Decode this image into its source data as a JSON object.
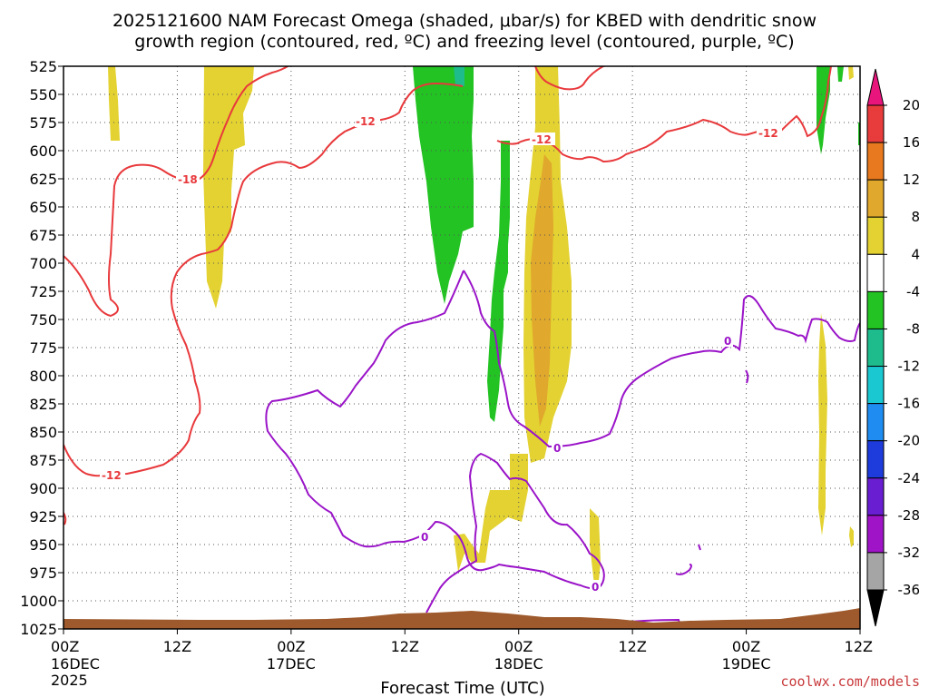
{
  "chart_data": {
    "type": "heatmap",
    "title_line1": "2025121600 NAM Forecast Omega (shaded, μbar/s) for KBED with dendritic snow",
    "title_line2": "growth region (contoured, red, ºC) and freezing level (contoured, purple, ºC)",
    "xlabel": "Forecast Time (UTC)",
    "credit": "coolwx.com/models",
    "y_levels": [
      "525",
      "550",
      "575",
      "600",
      "625",
      "650",
      "675",
      "700",
      "725",
      "750",
      "775",
      "800",
      "825",
      "850",
      "875",
      "900",
      "925",
      "950",
      "975",
      "1000",
      "1025"
    ],
    "y_range_hpa": [
      525,
      1025
    ],
    "x_range_hours": [
      0,
      84
    ],
    "x_ticks": [
      {
        "hour": 0,
        "time": "00Z",
        "date": "16DEC",
        "year": "2025"
      },
      {
        "hour": 12,
        "time": "12Z",
        "date": "",
        "year": ""
      },
      {
        "hour": 24,
        "time": "00Z",
        "date": "17DEC",
        "year": ""
      },
      {
        "hour": 36,
        "time": "12Z",
        "date": "",
        "year": ""
      },
      {
        "hour": 48,
        "time": "00Z",
        "date": "18DEC",
        "year": ""
      },
      {
        "hour": 60,
        "time": "12Z",
        "date": "",
        "year": ""
      },
      {
        "hour": 72,
        "time": "00Z",
        "date": "19DEC",
        "year": ""
      },
      {
        "hour": 84,
        "time": "12Z",
        "date": "",
        "year": ""
      }
    ],
    "colorbar": {
      "labels": [
        "20",
        "16",
        "12",
        "8",
        "4",
        "-4",
        "-8",
        "-12",
        "-16",
        "-20",
        "-24",
        "-28",
        "-32",
        "-36"
      ],
      "bins": [
        {
          "range": "above 20",
          "color": "#e8157d"
        },
        {
          "range": "16 to 20",
          "color": "#e83c3c"
        },
        {
          "range": "12 to 16",
          "color": "#e8791e"
        },
        {
          "range": "8 to 12",
          "color": "#e0a82c"
        },
        {
          "range": "4 to 8",
          "color": "#e3d232"
        },
        {
          "range": "-4 to 4",
          "color": "#ffffff"
        },
        {
          "range": "-8 to -4",
          "color": "#22c322"
        },
        {
          "range": "-12 to -8",
          "color": "#1ebc8c"
        },
        {
          "range": "-16 to -12",
          "color": "#1ac8d2"
        },
        {
          "range": "-20 to -16",
          "color": "#1e8cf0"
        },
        {
          "range": "-24 to -20",
          "color": "#1e3cdc"
        },
        {
          "range": "-28 to -24",
          "color": "#6a1ed2"
        },
        {
          "range": "-32 to -28",
          "color": "#a014c8"
        },
        {
          "range": "-36 to -32",
          "color": "#a5a5a5"
        },
        {
          "range": "below -36",
          "color": "#000000"
        }
      ]
    },
    "contour_labels": {
      "red": [
        "-18",
        "-12",
        "-12",
        "-12",
        "-12"
      ],
      "purple": [
        "0",
        "0",
        "0",
        "0"
      ]
    },
    "colors": {
      "red_contour": "#e8393c",
      "purple_contour": "#9a14c8",
      "terrain": "#9e5a2c",
      "grid": "#555555"
    }
  }
}
